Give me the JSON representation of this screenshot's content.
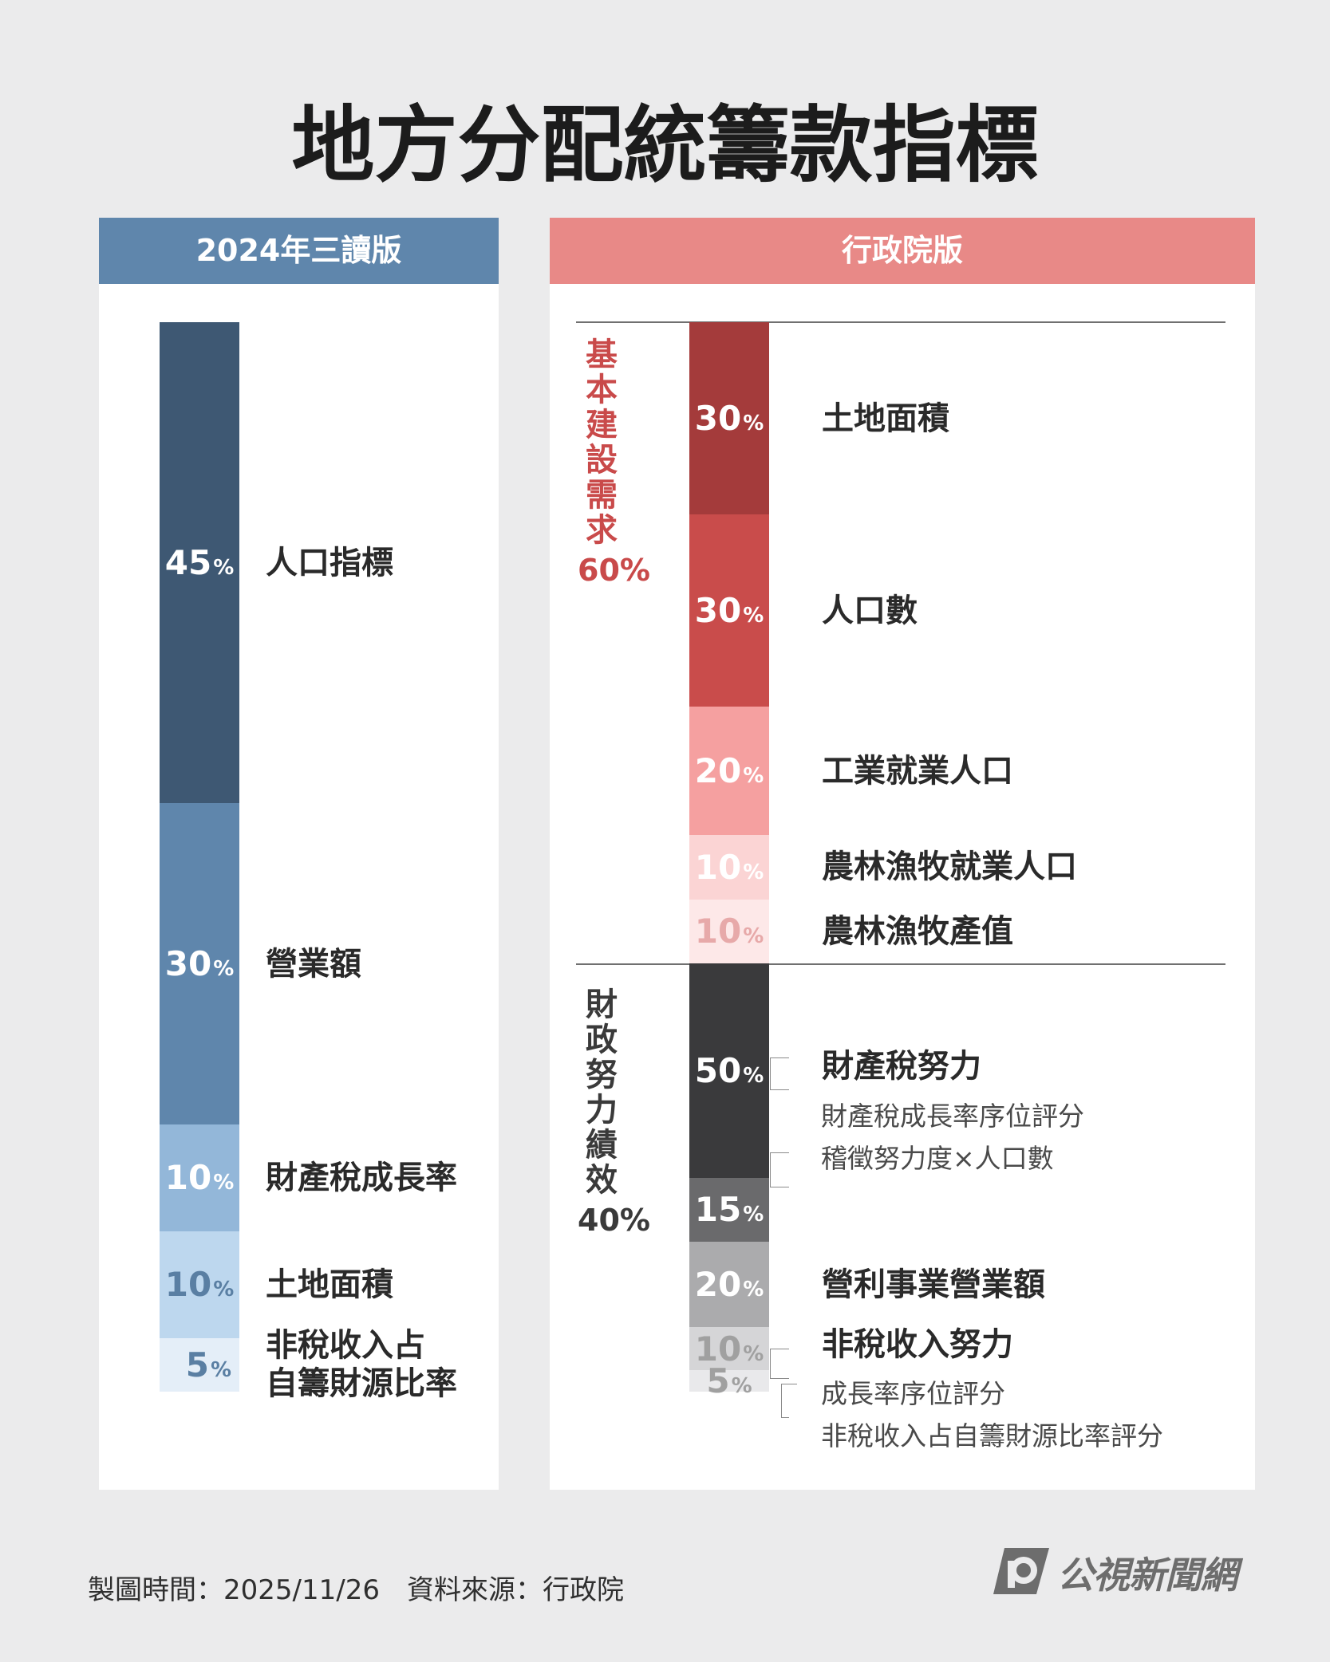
{
  "title": "地方分配統籌款指標",
  "left_panel": {
    "header": "2024年三讀版",
    "header_color": "#5f86ac"
  },
  "right_panel": {
    "header": "行政院版",
    "header_color": "#e88987",
    "groups": [
      {
        "label": "基本建設需求",
        "pct": "60%",
        "color": "#c94a4a"
      },
      {
        "label": "財政努力績效",
        "pct": "40%",
        "color": "#3a3a3a"
      }
    ],
    "sub_notes": {
      "property_tax": [
        "財產稅成長率序位評分",
        "稽徵努力度×人口數"
      ],
      "non_tax": [
        "成長率序位評分",
        "非稅收入占自籌財源比率評分"
      ]
    }
  },
  "chart_data": [
    {
      "type": "bar",
      "title": "2024年三讀版",
      "stacked": true,
      "categories": [
        "人口指標",
        "營業額",
        "財產稅成長率",
        "土地面積",
        "非稅收入占自籌財源比率"
      ],
      "label_lines": [
        [
          "人口指標"
        ],
        [
          "營業額"
        ],
        [
          "財產稅成長率"
        ],
        [
          "土地面積"
        ],
        [
          "非稅收入占",
          "自籌財源比率"
        ]
      ],
      "values": [
        45,
        30,
        10,
        10,
        5
      ],
      "colors": [
        "#3e5873",
        "#5f86ac",
        "#93b7d9",
        "#bdd7ee",
        "#e4eef8"
      ],
      "text_colors": [
        "#ffffff",
        "#ffffff",
        "#ffffff",
        "#5a7fa3",
        "#5a7fa3"
      ],
      "unit": "%"
    },
    {
      "type": "bar",
      "title": "行政院版",
      "stacked": true,
      "categories": [
        "土地面積",
        "人口數",
        "工業就業人口",
        "農林漁牧就業人口",
        "農林漁牧產值",
        "財產稅努力",
        "",
        "營利事業營業額",
        "非稅收入努力",
        ""
      ],
      "values": [
        30,
        30,
        20,
        10,
        10,
        50,
        15,
        20,
        10,
        5
      ],
      "group_of": [
        0,
        0,
        0,
        0,
        0,
        1,
        1,
        1,
        1,
        1
      ],
      "group_weights": [
        60,
        40
      ],
      "colors": [
        "#a43b3b",
        "#c94c4b",
        "#f5a0a0",
        "#fbd4d4",
        "#fde8e8",
        "#3a3a3c",
        "#6a6a6c",
        "#ababad",
        "#d5d5d7",
        "#e9e9eb"
      ],
      "text_colors": [
        "#ffffff",
        "#ffffff",
        "#ffffff",
        "#ffffff",
        "#e7a9a9",
        "#ffffff",
        "#ffffff",
        "#ffffff",
        "#a0a0a0",
        "#a0a0a0"
      ],
      "unit": "%"
    }
  ],
  "footer": {
    "text": "製圖時間：2025/11/26　資料來源：行政院",
    "logo": "公視新聞網"
  }
}
